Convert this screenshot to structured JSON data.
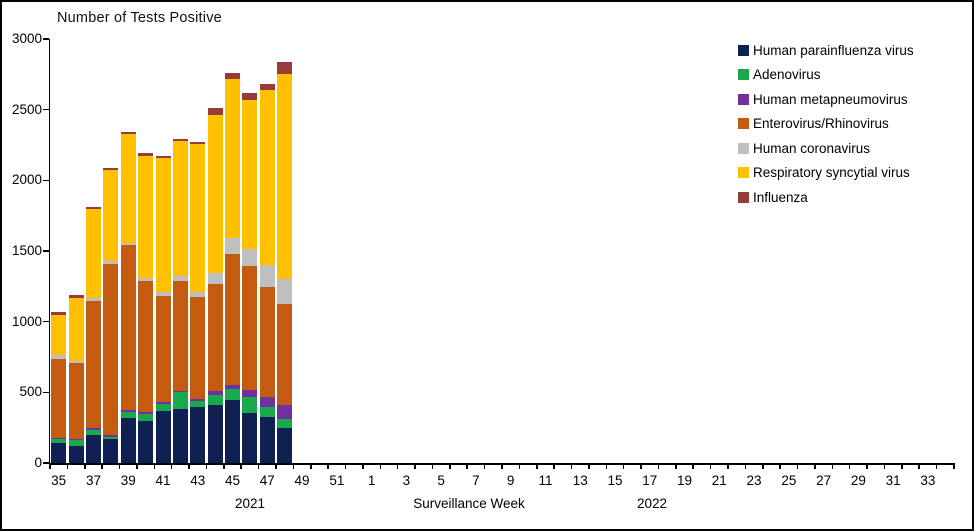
{
  "chart_data": {
    "type": "bar",
    "stacked": true,
    "title": "Number of Tests Positive",
    "xlabel": "Surveillance Week",
    "ylabel": "",
    "ylim": [
      0,
      3000
    ],
    "y_ticks": [
      0,
      500,
      1000,
      1500,
      2000,
      2500,
      3000
    ],
    "grid": false,
    "legend_position": "right",
    "x_axis": {
      "years": [
        "2021",
        "2022"
      ],
      "year1_weeks": {
        "first": 35,
        "last": 52
      },
      "year2_weeks": {
        "first": 1,
        "last": 34
      },
      "labeled_ticks": [
        "35",
        "37",
        "39",
        "41",
        "43",
        "45",
        "47",
        "49",
        "51",
        "1",
        "3",
        "5",
        "7",
        "9",
        "11",
        "13",
        "15",
        "17",
        "19",
        "21",
        "23",
        "25",
        "27",
        "29",
        "31",
        "33"
      ]
    },
    "categories": [
      35,
      36,
      37,
      38,
      39,
      40,
      41,
      42,
      43,
      44,
      45,
      46,
      47,
      48
    ],
    "categories_year": "2021",
    "series": [
      {
        "name": "Human parainfluenza virus",
        "color": "#0e2152",
        "values": [
          140,
          120,
          195,
          170,
          315,
          295,
          365,
          380,
          395,
          410,
          445,
          355,
          325,
          250
        ]
      },
      {
        "name": "Adenovirus",
        "color": "#18a94d",
        "values": [
          30,
          45,
          40,
          15,
          45,
          50,
          50,
          120,
          45,
          70,
          80,
          110,
          70,
          60
        ]
      },
      {
        "name": "Human metapneumovirus",
        "color": "#7030a0",
        "values": [
          5,
          5,
          10,
          15,
          15,
          15,
          15,
          10,
          15,
          30,
          30,
          50,
          70,
          100
        ]
      },
      {
        "name": "Enterovirus/Rhinovirus",
        "color": "#c55a11",
        "values": [
          560,
          535,
          900,
          1210,
          1165,
          930,
          750,
          780,
          720,
          760,
          925,
          880,
          780,
          715
        ]
      },
      {
        "name": "Human coronavirus",
        "color": "#bfbfbf",
        "values": [
          30,
          15,
          20,
          20,
          20,
          20,
          30,
          35,
          35,
          75,
          110,
          120,
          155,
          180
        ]
      },
      {
        "name": "Respiratory syncytial virus",
        "color": "#ffc000",
        "values": [
          285,
          450,
          630,
          640,
          770,
          865,
          945,
          950,
          1045,
          1120,
          1125,
          1055,
          1240,
          1450
        ]
      },
      {
        "name": "Influenza",
        "color": "#963d39",
        "values": [
          20,
          20,
          15,
          15,
          15,
          15,
          15,
          15,
          15,
          45,
          45,
          45,
          45,
          80
        ]
      }
    ]
  }
}
